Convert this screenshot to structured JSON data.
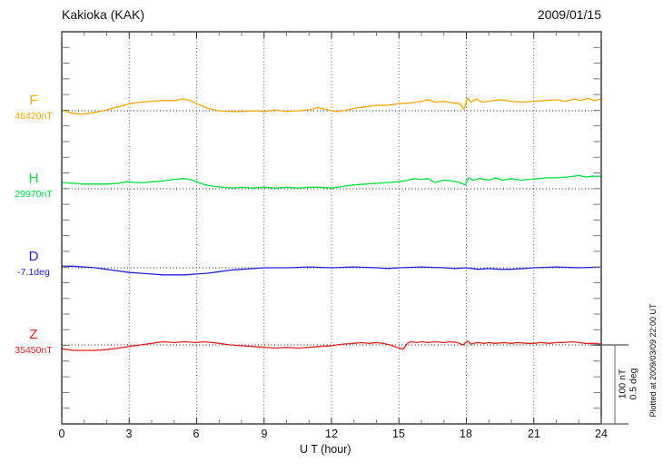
{
  "header": {
    "title": "Kakioka (KAK)",
    "date": "2009/01/15"
  },
  "x_axis": {
    "label": "U T (hour)",
    "ticks": [
      "0",
      "3",
      "6",
      "9",
      "12",
      "15",
      "18",
      "21",
      "24"
    ]
  },
  "scale_bar": {
    "label_nt": "100 nT",
    "label_deg": "0.5 deg"
  },
  "side_note": "Plotted at 2009/03/09 22:00 UT",
  "colors": {
    "F": "#F5A800",
    "H": "#00DD44",
    "D": "#2222DD",
    "Z": "#E02222",
    "frame": "#111111",
    "minor_tick": "#777777",
    "grid": "#555555"
  },
  "chart_data": {
    "type": "line",
    "title": "Kakioka (KAK)",
    "date": "2009/01/15",
    "xlabel": "U T (hour)",
    "x_range": [
      0,
      24
    ],
    "x_major_tick_step": 3,
    "x_minor_tick_step": 1,
    "grid": "vertical dotted line every 3 hours; dotted horizontal baseline per channel",
    "legend_position": "left of each trace",
    "scale_reference": {
      "nT_per_bar": 100,
      "deg_per_bar": 0.5
    },
    "note": "points are [hour UT, deviation from base_value] in the channel unit",
    "series": [
      {
        "name": "F",
        "label": "F",
        "base_value": "46420nT",
        "unit": "nT",
        "color": "#F5A800",
        "points": [
          [
            0,
            1
          ],
          [
            0.3,
            -2
          ],
          [
            0.7,
            -4
          ],
          [
            1,
            -4
          ],
          [
            1.5,
            -2
          ],
          [
            2,
            1
          ],
          [
            2.5,
            5
          ],
          [
            3,
            9
          ],
          [
            3.5,
            11
          ],
          [
            4,
            12
          ],
          [
            4.5,
            13
          ],
          [
            5,
            13
          ],
          [
            5.4,
            15
          ],
          [
            5.7,
            13
          ],
          [
            6,
            9
          ],
          [
            6.5,
            3
          ],
          [
            7,
            0
          ],
          [
            7.5,
            -1
          ],
          [
            8,
            -1
          ],
          [
            8.5,
            0
          ],
          [
            9,
            -1
          ],
          [
            9.5,
            1
          ],
          [
            10,
            -1
          ],
          [
            10.5,
            0
          ],
          [
            11,
            1
          ],
          [
            11.4,
            4
          ],
          [
            11.7,
            2
          ],
          [
            12,
            0
          ],
          [
            12.3,
            -1
          ],
          [
            12.7,
            1
          ],
          [
            13,
            3
          ],
          [
            13.5,
            5
          ],
          [
            14,
            7
          ],
          [
            14.5,
            7
          ],
          [
            15,
            9
          ],
          [
            15.5,
            10
          ],
          [
            16,
            12
          ],
          [
            16.3,
            14
          ],
          [
            16.6,
            11
          ],
          [
            17,
            12
          ],
          [
            17.4,
            10
          ],
          [
            17.7,
            9
          ],
          [
            17.9,
            2
          ],
          [
            18.05,
            16
          ],
          [
            18.2,
            11
          ],
          [
            18.45,
            15
          ],
          [
            18.7,
            11
          ],
          [
            19,
            12
          ],
          [
            19.5,
            14
          ],
          [
            20,
            12
          ],
          [
            20.5,
            11
          ],
          [
            21,
            12
          ],
          [
            21.5,
            13
          ],
          [
            22,
            14
          ],
          [
            22.4,
            12
          ],
          [
            22.8,
            15
          ],
          [
            23.1,
            13
          ],
          [
            23.4,
            16
          ],
          [
            23.7,
            13
          ],
          [
            24,
            15
          ]
        ]
      },
      {
        "name": "H",
        "label": "H",
        "base_value": "29970nT",
        "unit": "nT",
        "color": "#00DD44",
        "points": [
          [
            0,
            8
          ],
          [
            0.5,
            7
          ],
          [
            1,
            6
          ],
          [
            1.5,
            6
          ],
          [
            2,
            6
          ],
          [
            2.5,
            7
          ],
          [
            2.9,
            9
          ],
          [
            3.3,
            8
          ],
          [
            3.7,
            8
          ],
          [
            4,
            9
          ],
          [
            4.5,
            10
          ],
          [
            5,
            12
          ],
          [
            5.4,
            13
          ],
          [
            5.7,
            12
          ],
          [
            6,
            9
          ],
          [
            6.4,
            5
          ],
          [
            6.8,
            3
          ],
          [
            7.2,
            2
          ],
          [
            7.6,
            1
          ],
          [
            8,
            2
          ],
          [
            8.5,
            1
          ],
          [
            9,
            2
          ],
          [
            9.5,
            1
          ],
          [
            10,
            2
          ],
          [
            10.5,
            1
          ],
          [
            11,
            2
          ],
          [
            11.5,
            2
          ],
          [
            12,
            1
          ],
          [
            12.5,
            3
          ],
          [
            13,
            5
          ],
          [
            13.5,
            6
          ],
          [
            14,
            7
          ],
          [
            14.5,
            8
          ],
          [
            15,
            9
          ],
          [
            15.4,
            11
          ],
          [
            15.7,
            13
          ],
          [
            16,
            12
          ],
          [
            16.3,
            13
          ],
          [
            16.6,
            8
          ],
          [
            17,
            11
          ],
          [
            17.4,
            10
          ],
          [
            17.7,
            8
          ],
          [
            17.95,
            5
          ],
          [
            18.1,
            14
          ],
          [
            18.3,
            11
          ],
          [
            18.6,
            13
          ],
          [
            19,
            11
          ],
          [
            19.3,
            14
          ],
          [
            19.6,
            11
          ],
          [
            20,
            13
          ],
          [
            20.4,
            11
          ],
          [
            20.8,
            12
          ],
          [
            21.2,
            13
          ],
          [
            21.6,
            14
          ],
          [
            22,
            14
          ],
          [
            22.5,
            15
          ],
          [
            23,
            17
          ],
          [
            23.3,
            15
          ],
          [
            23.6,
            16
          ],
          [
            24,
            16
          ]
        ]
      },
      {
        "name": "D",
        "label": "D",
        "base_value": "-7.1deg",
        "unit": "deg",
        "color": "#2222DD",
        "points": [
          [
            0,
            0.01
          ],
          [
            0.5,
            0.01
          ],
          [
            1,
            0.005
          ],
          [
            1.5,
            0
          ],
          [
            2,
            -0.01
          ],
          [
            2.5,
            -0.02
          ],
          [
            3,
            -0.03
          ],
          [
            3.5,
            -0.035
          ],
          [
            4,
            -0.04
          ],
          [
            4.5,
            -0.045
          ],
          [
            5,
            -0.045
          ],
          [
            5.5,
            -0.045
          ],
          [
            6,
            -0.04
          ],
          [
            6.5,
            -0.035
          ],
          [
            7,
            -0.025
          ],
          [
            7.5,
            -0.015
          ],
          [
            8,
            -0.01
          ],
          [
            8.5,
            -0.005
          ],
          [
            9,
            0
          ],
          [
            10,
            0
          ],
          [
            11,
            0.005
          ],
          [
            12,
            0
          ],
          [
            13,
            0.005
          ],
          [
            14,
            0
          ],
          [
            14.5,
            -0.005
          ],
          [
            15,
            0
          ],
          [
            16,
            0.005
          ],
          [
            17,
            0
          ],
          [
            17.5,
            -0.005
          ],
          [
            18,
            0
          ],
          [
            18.5,
            -0.01
          ],
          [
            19,
            -0.005
          ],
          [
            19.5,
            -0.01
          ],
          [
            20,
            -0.01
          ],
          [
            20.5,
            -0.005
          ],
          [
            21,
            0
          ],
          [
            22,
            0.005
          ],
          [
            23,
            0
          ],
          [
            24,
            0.005
          ]
        ]
      },
      {
        "name": "Z",
        "label": "Z",
        "base_value": "35450nT",
        "unit": "nT",
        "color": "#E02222",
        "points": [
          [
            0,
            -5
          ],
          [
            0.5,
            -7
          ],
          [
            1,
            -7
          ],
          [
            1.5,
            -7
          ],
          [
            2,
            -6
          ],
          [
            2.5,
            -4
          ],
          [
            3,
            -2
          ],
          [
            3.5,
            0
          ],
          [
            4,
            2
          ],
          [
            4.5,
            4
          ],
          [
            5,
            3
          ],
          [
            5.5,
            4
          ],
          [
            6,
            3
          ],
          [
            6.3,
            4
          ],
          [
            6.7,
            3
          ],
          [
            7,
            2
          ],
          [
            7.5,
            0
          ],
          [
            8,
            -1
          ],
          [
            8.5,
            -2
          ],
          [
            9,
            -3
          ],
          [
            9.5,
            -4
          ],
          [
            10,
            -3
          ],
          [
            10.5,
            -4
          ],
          [
            11,
            -3
          ],
          [
            11.5,
            -2
          ],
          [
            12,
            -1
          ],
          [
            12.5,
            1
          ],
          [
            13,
            2
          ],
          [
            13.3,
            3
          ],
          [
            13.7,
            2
          ],
          [
            14,
            3
          ],
          [
            14.3,
            2
          ],
          [
            14.6,
            0
          ],
          [
            15,
            -4
          ],
          [
            15.2,
            -5
          ],
          [
            15.35,
            1
          ],
          [
            15.5,
            4
          ],
          [
            15.8,
            3
          ],
          [
            16,
            4
          ],
          [
            16.3,
            3
          ],
          [
            16.6,
            4
          ],
          [
            17,
            3
          ],
          [
            17.3,
            4
          ],
          [
            17.6,
            3
          ],
          [
            17.85,
            0
          ],
          [
            18.05,
            5
          ],
          [
            18.2,
            1
          ],
          [
            18.5,
            3
          ],
          [
            18.8,
            2
          ],
          [
            19,
            3
          ],
          [
            19.3,
            2
          ],
          [
            19.7,
            3
          ],
          [
            20,
            2
          ],
          [
            20.3,
            3
          ],
          [
            20.7,
            2
          ],
          [
            21,
            2
          ],
          [
            21.3,
            3
          ],
          [
            21.7,
            2
          ],
          [
            22,
            3
          ],
          [
            22.3,
            3
          ],
          [
            22.7,
            4
          ],
          [
            23,
            3
          ],
          [
            23.3,
            2
          ],
          [
            23.7,
            2
          ],
          [
            24,
            1
          ]
        ]
      }
    ]
  }
}
